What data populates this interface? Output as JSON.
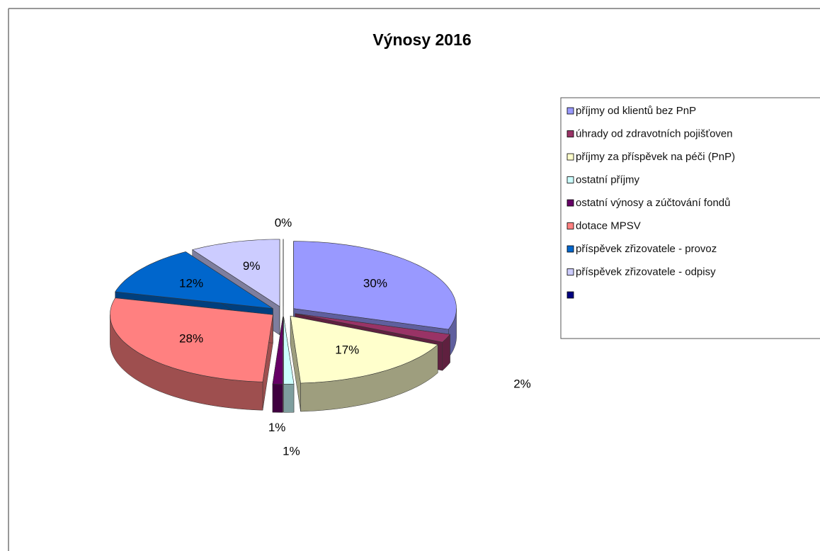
{
  "chart_data": {
    "type": "pie",
    "title": "Výnosy 2016",
    "categories": [
      "příjmy od klientů bez PnP",
      "úhrady od zdravotních pojišťoven",
      "příjmy za příspěvek na péči (PnP)",
      "ostatní příjmy",
      "ostatní výnosy a zúčtování fondů",
      "dotace MPSV",
      "příspěvek zřizovatele - provoz",
      "příspěvek zřizovatele - odpisy",
      null
    ],
    "values": [
      30,
      2,
      17,
      1,
      1,
      28,
      12,
      9,
      0
    ],
    "value_labels": [
      "30%",
      "2%",
      "17%",
      "1%",
      "1%",
      "28%",
      "12%",
      "9%",
      "0%"
    ],
    "colors": [
      "#9999ff",
      "#993366",
      "#ffffcc",
      "#ccffff",
      "#660066",
      "#ff8080",
      "#0066cc",
      "#ccccff",
      "#000080"
    ],
    "legend": "right"
  }
}
